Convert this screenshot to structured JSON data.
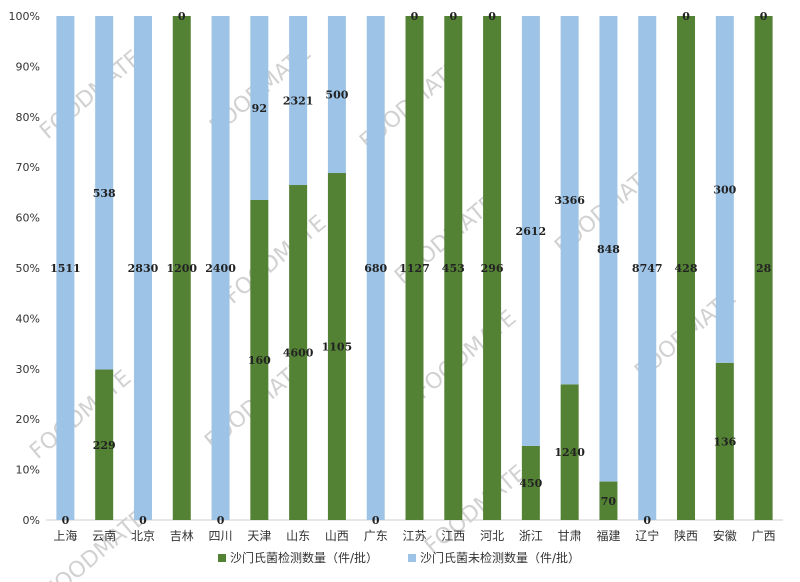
{
  "chart_data": {
    "type": "bar",
    "stacked": "percent",
    "categories": [
      "上海",
      "云南",
      "北京",
      "吉林",
      "四川",
      "天津",
      "山东",
      "山西",
      "广东",
      "江苏",
      "江西",
      "河北",
      "浙江",
      "甘肃",
      "福建",
      "辽宁",
      "陕西",
      "安徽",
      "广西"
    ],
    "series": [
      {
        "name": "沙门氏菌检测数量（件/批）",
        "color": "#548235",
        "values": [
          0,
          229,
          0,
          1200,
          0,
          160,
          4600,
          1105,
          0,
          1127,
          453,
          296,
          450,
          1240,
          70,
          0,
          428,
          136,
          28
        ]
      },
      {
        "name": "沙门氏菌未检测数量（件/批）",
        "color": "#9DC3E6",
        "values": [
          1511,
          538,
          2830,
          0,
          2400,
          92,
          2321,
          500,
          680,
          0,
          0,
          0,
          2612,
          3366,
          848,
          8747,
          0,
          300,
          0
        ]
      }
    ],
    "yticks": [
      "0%",
      "10%",
      "20%",
      "30%",
      "40%",
      "50%",
      "60%",
      "70%",
      "80%",
      "90%",
      "100%"
    ],
    "ylim": [
      0,
      100
    ],
    "grid": false,
    "legend": "bottom",
    "watermark": "FOODMATE"
  }
}
